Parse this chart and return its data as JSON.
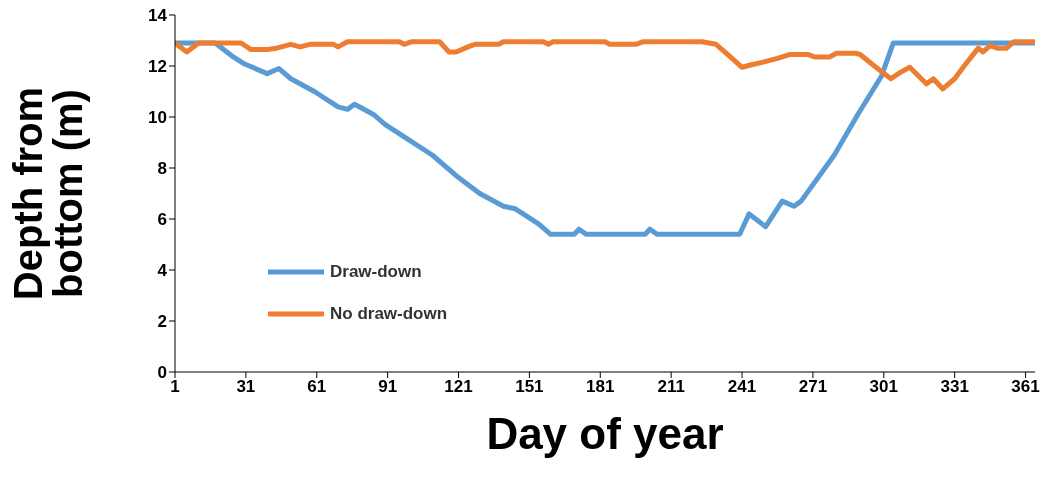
{
  "chart_data": {
    "type": "line",
    "xlabel": "Day of year",
    "ylabel": "Depth from bottom (m)",
    "xlim": [
      1,
      365
    ],
    "xticks": [
      1,
      31,
      61,
      91,
      121,
      151,
      181,
      211,
      241,
      271,
      301,
      331,
      361
    ],
    "ylim": [
      0,
      14
    ],
    "yticks": [
      0,
      2,
      4,
      6,
      8,
      10,
      12,
      14
    ],
    "grid": false,
    "legend": "bottom left",
    "marker": "none",
    "line_style": "solid",
    "series": [
      {
        "name": "Draw-down",
        "color": "#5b9bd5",
        "x": [
          1,
          18,
          25,
          30,
          40,
          45,
          50,
          60,
          70,
          74,
          77,
          85,
          90,
          100,
          110,
          120,
          130,
          140,
          145,
          150,
          155,
          160,
          170,
          172,
          175,
          200,
          202,
          205,
          240,
          244,
          251,
          258,
          263,
          266,
          280,
          290,
          300,
          305,
          365
        ],
        "values": [
          12.9,
          12.9,
          12.4,
          12.1,
          11.7,
          11.9,
          11.5,
          11.0,
          10.4,
          10.3,
          10.5,
          10.1,
          9.7,
          9.1,
          8.5,
          7.7,
          7.0,
          6.5,
          6.4,
          6.1,
          5.8,
          5.4,
          5.4,
          5.6,
          5.4,
          5.4,
          5.6,
          5.4,
          5.4,
          6.2,
          5.7,
          6.7,
          6.5,
          6.7,
          8.5,
          10.1,
          11.6,
          12.9,
          12.9
        ]
      },
      {
        "name": "No draw-down",
        "color": "#ed7d31",
        "x": [
          1,
          6,
          11,
          29,
          33,
          40,
          44,
          50,
          54,
          58,
          68,
          70,
          74,
          96,
          98,
          101,
          113,
          117,
          120,
          125,
          128,
          138,
          140,
          157,
          159,
          161,
          183,
          185,
          196,
          199,
          224,
          230,
          235,
          241,
          245,
          250,
          256,
          261,
          269,
          272,
          278,
          281,
          289,
          291,
          297,
          304,
          308,
          312,
          319,
          322,
          326,
          331,
          335,
          341,
          343,
          346,
          349,
          353,
          356,
          365
        ],
        "values": [
          12.9,
          12.55,
          12.9,
          12.9,
          12.65,
          12.65,
          12.7,
          12.85,
          12.75,
          12.85,
          12.85,
          12.75,
          12.95,
          12.95,
          12.85,
          12.95,
          12.95,
          12.55,
          12.55,
          12.75,
          12.85,
          12.85,
          12.95,
          12.95,
          12.85,
          12.95,
          12.95,
          12.85,
          12.85,
          12.95,
          12.95,
          12.85,
          12.45,
          11.95,
          12.05,
          12.15,
          12.3,
          12.45,
          12.45,
          12.35,
          12.35,
          12.5,
          12.5,
          12.45,
          12.0,
          11.5,
          11.75,
          11.95,
          11.3,
          11.5,
          11.1,
          11.5,
          12.0,
          12.7,
          12.55,
          12.8,
          12.7,
          12.7,
          12.95,
          12.95
        ]
      }
    ]
  }
}
